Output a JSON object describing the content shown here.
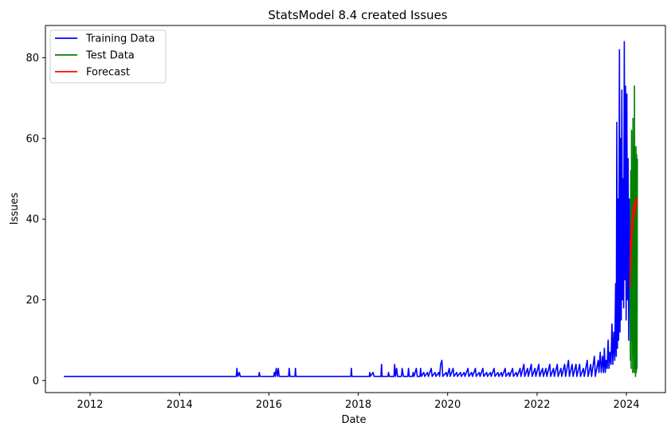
{
  "chart_data": {
    "type": "line",
    "title": "StatsModel 8.4 created Issues",
    "xlabel": "Date",
    "ylabel": "Issues",
    "x_axis": "date",
    "xlim": [
      "2011-01-01",
      "2024-11-15"
    ],
    "ylim": [
      -3,
      88
    ],
    "x_ticks": [
      "2012",
      "2014",
      "2016",
      "2018",
      "2020",
      "2022",
      "2024"
    ],
    "y_ticks": [
      "0",
      "20",
      "40",
      "60",
      "80"
    ],
    "grid": false,
    "legend_position": "top-left",
    "series": [
      {
        "name": "Training Data",
        "color": "#0000ff",
        "points": [
          [
            "2011-06-01",
            1
          ],
          [
            "2015-04-10",
            1
          ],
          [
            "2015-04-15",
            3
          ],
          [
            "2015-04-22",
            1
          ],
          [
            "2015-05-05",
            2
          ],
          [
            "2015-05-12",
            1
          ],
          [
            "2015-10-10",
            1
          ],
          [
            "2015-10-15",
            2
          ],
          [
            "2015-10-20",
            1
          ],
          [
            "2016-02-10",
            1
          ],
          [
            "2016-02-15",
            2
          ],
          [
            "2016-02-22",
            1
          ],
          [
            "2016-03-01",
            3
          ],
          [
            "2016-03-10",
            1
          ],
          [
            "2016-03-18",
            3
          ],
          [
            "2016-03-25",
            1
          ],
          [
            "2016-06-10",
            1
          ],
          [
            "2016-06-15",
            3
          ],
          [
            "2016-06-22",
            1
          ],
          [
            "2016-08-01",
            1
          ],
          [
            "2016-08-05",
            3
          ],
          [
            "2016-08-10",
            1
          ],
          [
            "2017-11-01",
            1
          ],
          [
            "2017-11-05",
            3
          ],
          [
            "2017-11-10",
            1
          ],
          [
            "2018-04-01",
            1
          ],
          [
            "2018-04-05",
            2
          ],
          [
            "2018-04-10",
            1
          ],
          [
            "2018-05-01",
            2
          ],
          [
            "2018-05-10",
            1
          ],
          [
            "2018-07-05",
            1
          ],
          [
            "2018-07-10",
            4
          ],
          [
            "2018-07-15",
            1
          ],
          [
            "2018-09-01",
            1
          ],
          [
            "2018-09-05",
            2
          ],
          [
            "2018-09-12",
            1
          ],
          [
            "2018-10-20",
            1
          ],
          [
            "2018-10-25",
            4
          ],
          [
            "2018-11-01",
            1
          ],
          [
            "2018-11-10",
            3
          ],
          [
            "2018-11-18",
            1
          ],
          [
            "2018-12-20",
            1
          ],
          [
            "2018-12-25",
            3
          ],
          [
            "2019-01-05",
            1
          ],
          [
            "2019-02-10",
            1
          ],
          [
            "2019-02-15",
            3
          ],
          [
            "2019-02-22",
            1
          ],
          [
            "2019-03-20",
            1
          ],
          [
            "2019-03-25",
            2
          ],
          [
            "2019-04-01",
            1
          ],
          [
            "2019-04-20",
            3
          ],
          [
            "2019-04-28",
            1
          ],
          [
            "2019-05-20",
            1
          ],
          [
            "2019-05-25",
            3
          ],
          [
            "2019-06-01",
            1
          ],
          [
            "2019-06-20",
            2
          ],
          [
            "2019-06-28",
            1
          ],
          [
            "2019-07-20",
            2
          ],
          [
            "2019-07-28",
            1
          ],
          [
            "2019-08-20",
            3
          ],
          [
            "2019-08-28",
            1
          ],
          [
            "2019-09-20",
            2
          ],
          [
            "2019-09-28",
            1
          ],
          [
            "2019-10-20",
            2
          ],
          [
            "2019-10-28",
            1
          ],
          [
            "2019-11-05",
            4
          ],
          [
            "2019-11-15",
            5
          ],
          [
            "2019-11-22",
            1
          ],
          [
            "2019-12-20",
            2
          ],
          [
            "2019-12-28",
            1
          ],
          [
            "2020-01-15",
            3
          ],
          [
            "2020-01-22",
            1
          ],
          [
            "2020-02-15",
            3
          ],
          [
            "2020-02-22",
            1
          ],
          [
            "2020-03-15",
            2
          ],
          [
            "2020-03-22",
            1
          ],
          [
            "2020-04-15",
            2
          ],
          [
            "2020-04-22",
            1
          ],
          [
            "2020-05-15",
            2
          ],
          [
            "2020-05-22",
            1
          ],
          [
            "2020-06-15",
            3
          ],
          [
            "2020-06-22",
            1
          ],
          [
            "2020-07-15",
            2
          ],
          [
            "2020-07-22",
            1
          ],
          [
            "2020-08-15",
            3
          ],
          [
            "2020-08-22",
            1
          ],
          [
            "2020-09-15",
            2
          ],
          [
            "2020-09-22",
            1
          ],
          [
            "2020-10-15",
            3
          ],
          [
            "2020-10-22",
            1
          ],
          [
            "2020-11-15",
            2
          ],
          [
            "2020-11-22",
            1
          ],
          [
            "2020-12-15",
            2
          ],
          [
            "2020-12-22",
            1
          ],
          [
            "2021-01-15",
            3
          ],
          [
            "2021-01-22",
            1
          ],
          [
            "2021-02-15",
            2
          ],
          [
            "2021-02-22",
            1
          ],
          [
            "2021-03-15",
            2
          ],
          [
            "2021-03-22",
            1
          ],
          [
            "2021-04-15",
            3
          ],
          [
            "2021-04-22",
            1
          ],
          [
            "2021-05-15",
            2
          ],
          [
            "2021-05-22",
            1
          ],
          [
            "2021-06-15",
            3
          ],
          [
            "2021-06-22",
            1
          ],
          [
            "2021-07-15",
            2
          ],
          [
            "2021-07-22",
            1
          ],
          [
            "2021-08-15",
            3
          ],
          [
            "2021-08-22",
            1
          ],
          [
            "2021-09-15",
            4
          ],
          [
            "2021-09-22",
            1
          ],
          [
            "2021-10-15",
            3
          ],
          [
            "2021-10-22",
            1
          ],
          [
            "2021-11-15",
            4
          ],
          [
            "2021-11-22",
            1
          ],
          [
            "2021-12-15",
            3
          ],
          [
            "2021-12-22",
            1
          ],
          [
            "2022-01-15",
            4
          ],
          [
            "2022-01-22",
            1
          ],
          [
            "2022-02-15",
            3
          ],
          [
            "2022-02-22",
            1
          ],
          [
            "2022-03-15",
            3
          ],
          [
            "2022-03-22",
            1
          ],
          [
            "2022-04-15",
            4
          ],
          [
            "2022-04-22",
            1
          ],
          [
            "2022-05-15",
            3
          ],
          [
            "2022-05-22",
            1
          ],
          [
            "2022-06-15",
            4
          ],
          [
            "2022-06-22",
            1
          ],
          [
            "2022-07-15",
            3
          ],
          [
            "2022-07-22",
            1
          ],
          [
            "2022-08-15",
            4
          ],
          [
            "2022-08-22",
            1
          ],
          [
            "2022-09-15",
            5
          ],
          [
            "2022-09-22",
            1
          ],
          [
            "2022-10-15",
            4
          ],
          [
            "2022-10-22",
            1
          ],
          [
            "2022-11-15",
            4
          ],
          [
            "2022-11-22",
            1
          ],
          [
            "2022-12-15",
            4
          ],
          [
            "2022-12-22",
            1
          ],
          [
            "2023-01-15",
            3
          ],
          [
            "2023-01-22",
            1
          ],
          [
            "2023-02-15",
            5
          ],
          [
            "2023-02-22",
            1
          ],
          [
            "2023-03-15",
            4
          ],
          [
            "2023-03-22",
            1
          ],
          [
            "2023-04-15",
            6
          ],
          [
            "2023-04-22",
            1
          ],
          [
            "2023-05-15",
            5
          ],
          [
            "2023-05-22",
            2
          ],
          [
            "2023-06-01",
            7
          ],
          [
            "2023-06-10",
            2
          ],
          [
            "2023-06-20",
            6
          ],
          [
            "2023-06-28",
            2
          ],
          [
            "2023-07-05",
            8
          ],
          [
            "2023-07-12",
            2
          ],
          [
            "2023-07-20",
            5
          ],
          [
            "2023-07-28",
            3
          ],
          [
            "2023-08-05",
            10
          ],
          [
            "2023-08-12",
            3
          ],
          [
            "2023-08-20",
            7
          ],
          [
            "2023-08-28",
            4
          ],
          [
            "2023-09-05",
            14
          ],
          [
            "2023-09-12",
            4
          ],
          [
            "2023-09-20",
            12
          ],
          [
            "2023-09-28",
            5
          ],
          [
            "2023-10-05",
            24
          ],
          [
            "2023-10-10",
            6
          ],
          [
            "2023-10-15",
            64
          ],
          [
            "2023-10-20",
            8
          ],
          [
            "2023-10-25",
            45
          ],
          [
            "2023-10-30",
            10
          ],
          [
            "2023-11-05",
            82
          ],
          [
            "2023-11-10",
            12
          ],
          [
            "2023-11-15",
            60
          ],
          [
            "2023-11-20",
            15
          ],
          [
            "2023-11-25",
            72
          ],
          [
            "2023-11-30",
            20
          ],
          [
            "2023-12-05",
            50
          ],
          [
            "2023-12-10",
            18
          ],
          [
            "2023-12-15",
            84
          ],
          [
            "2023-12-20",
            25
          ],
          [
            "2023-12-25",
            73
          ],
          [
            "2023-12-30",
            15
          ],
          [
            "2024-01-05",
            71
          ],
          [
            "2024-01-10",
            20
          ],
          [
            "2024-01-15",
            55
          ],
          [
            "2024-01-20",
            10
          ],
          [
            "2024-01-25",
            45
          ],
          [
            "2024-01-31",
            25
          ]
        ]
      },
      {
        "name": "Test Data",
        "color": "#008000",
        "points": [
          [
            "2024-01-31",
            25
          ],
          [
            "2024-02-03",
            5
          ],
          [
            "2024-02-06",
            52
          ],
          [
            "2024-02-09",
            3
          ],
          [
            "2024-02-12",
            62
          ],
          [
            "2024-02-15",
            10
          ],
          [
            "2024-02-18",
            48
          ],
          [
            "2024-02-21",
            2
          ],
          [
            "2024-02-24",
            65
          ],
          [
            "2024-02-27",
            6
          ],
          [
            "2024-03-01",
            58
          ],
          [
            "2024-03-04",
            2
          ],
          [
            "2024-03-07",
            73
          ],
          [
            "2024-03-10",
            3
          ],
          [
            "2024-03-13",
            55
          ],
          [
            "2024-03-16",
            1
          ],
          [
            "2024-03-19",
            58
          ],
          [
            "2024-03-22",
            2
          ],
          [
            "2024-03-25",
            56
          ],
          [
            "2024-03-28",
            3
          ],
          [
            "2024-03-31",
            55
          ]
        ]
      },
      {
        "name": "Forecast",
        "color": "#ff0000",
        "points": [
          [
            "2024-01-31",
            23
          ],
          [
            "2024-02-03",
            35
          ],
          [
            "2024-02-06",
            28
          ],
          [
            "2024-02-09",
            38
          ],
          [
            "2024-02-12",
            33
          ],
          [
            "2024-02-15",
            40
          ],
          [
            "2024-02-18",
            36
          ],
          [
            "2024-02-21",
            42
          ],
          [
            "2024-02-24",
            38
          ],
          [
            "2024-02-27",
            43
          ],
          [
            "2024-03-01",
            40
          ],
          [
            "2024-03-04",
            44
          ],
          [
            "2024-03-07",
            41
          ],
          [
            "2024-03-10",
            44
          ],
          [
            "2024-03-13",
            42
          ],
          [
            "2024-03-16",
            45
          ],
          [
            "2024-03-19",
            43
          ],
          [
            "2024-03-22",
            45
          ],
          [
            "2024-03-25",
            44
          ],
          [
            "2024-03-28",
            45
          ],
          [
            "2024-03-31",
            45
          ]
        ]
      }
    ]
  }
}
